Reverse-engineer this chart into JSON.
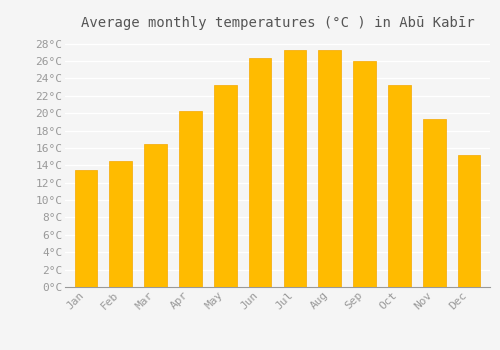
{
  "months": [
    "Jan",
    "Feb",
    "Mar",
    "Apr",
    "May",
    "Jun",
    "Jul",
    "Aug",
    "Sep",
    "Oct",
    "Nov",
    "Dec"
  ],
  "values": [
    13.5,
    14.5,
    16.5,
    20.3,
    23.3,
    26.3,
    27.3,
    27.3,
    26.0,
    23.3,
    19.3,
    15.2
  ],
  "bar_color_face": "#FFBB00",
  "bar_color_edge": "#F5A800",
  "title": "Average monthly temperatures (°C ) in Abū Kabīr",
  "ylim": [
    0,
    29
  ],
  "yticks": [
    0,
    2,
    4,
    6,
    8,
    10,
    12,
    14,
    16,
    18,
    20,
    22,
    24,
    26,
    28
  ],
  "ytick_labels": [
    "0°C",
    "2°C",
    "4°C",
    "6°C",
    "8°C",
    "10°C",
    "12°C",
    "14°C",
    "16°C",
    "18°C",
    "20°C",
    "22°C",
    "24°C",
    "26°C",
    "28°C"
  ],
  "background_color": "#f5f5f5",
  "grid_color": "#ffffff",
  "title_fontsize": 10,
  "tick_fontsize": 8,
  "tick_color": "#999999",
  "title_color": "#555555",
  "bar_width": 0.65
}
